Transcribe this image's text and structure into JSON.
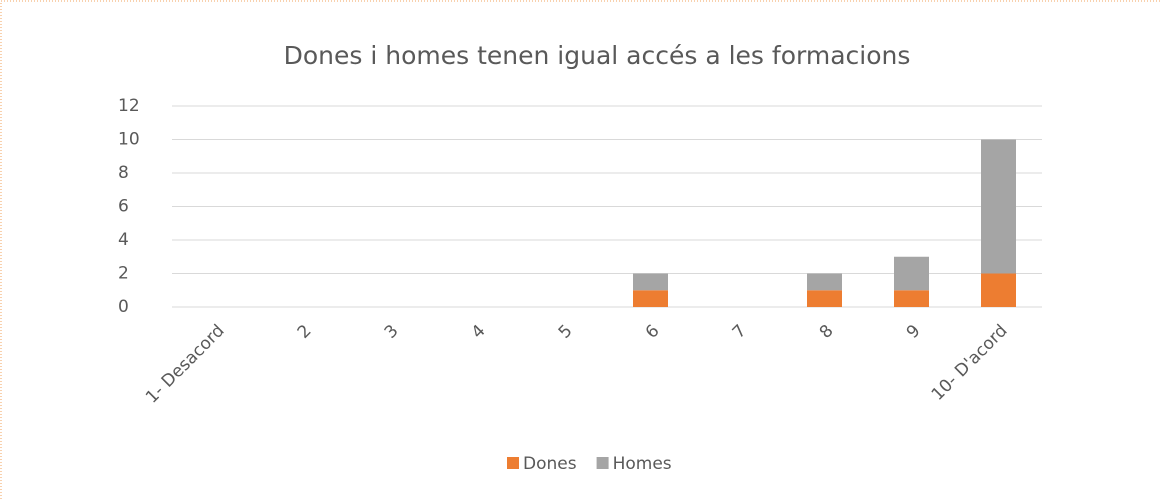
{
  "chart_data": {
    "type": "bar",
    "stacked": true,
    "title": "Dones i homes tenen igual accés a les formacions",
    "categories": [
      "1- Desacord",
      "2",
      "3",
      "4",
      "5",
      "6",
      "7",
      "8",
      "9",
      "10- D'acord"
    ],
    "series": [
      {
        "name": "Dones",
        "color": "#ed7d31",
        "values": [
          0,
          0,
          0,
          0,
          0,
          1,
          0,
          1,
          1,
          2
        ]
      },
      {
        "name": "Homes",
        "color": "#a5a5a5",
        "values": [
          0,
          0,
          0,
          0,
          0,
          1,
          0,
          1,
          2,
          8
        ]
      }
    ],
    "ylim": [
      0,
      12
    ],
    "yticks": [
      0,
      2,
      4,
      6,
      8,
      10,
      12
    ],
    "grid": true,
    "legend": "bottom"
  }
}
